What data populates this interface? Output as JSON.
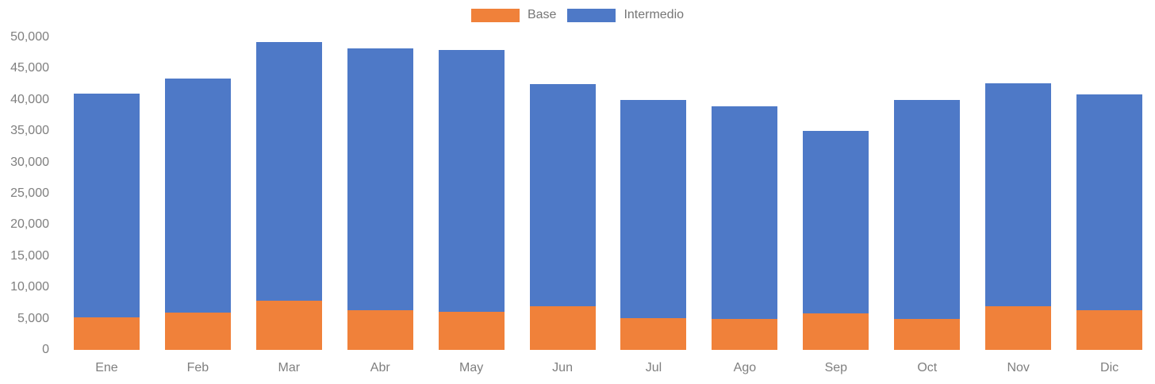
{
  "chart_data": {
    "type": "bar",
    "stacked": true,
    "title": "",
    "categories": [
      "Ene",
      "Feb",
      "Mar",
      "Abr",
      "May",
      "Jun",
      "Jul",
      "Ago",
      "Sep",
      "Oct",
      "Nov",
      "Dic"
    ],
    "series": [
      {
        "name": "Base",
        "color": "#F0813A",
        "values": [
          5200,
          6000,
          7900,
          6300,
          6100,
          7000,
          5100,
          4900,
          5800,
          5000,
          7000,
          6400
        ]
      },
      {
        "name": "Intermedio",
        "color": "#4E79C7",
        "values": [
          35800,
          37400,
          41300,
          41900,
          41900,
          35500,
          34900,
          34100,
          29200,
          35000,
          35600,
          34500
        ]
      }
    ],
    "stacked_totals": [
      41000,
      43400,
      49200,
      48200,
      48000,
      42500,
      40000,
      39000,
      35000,
      40000,
      42600,
      40900
    ],
    "ylim": [
      0,
      50000
    ],
    "ytick_step": 5000,
    "ytick_labels": [
      "0",
      "5,000",
      "10,000",
      "15,000",
      "20,000",
      "25,000",
      "30,000",
      "35,000",
      "40,000",
      "45,000",
      "50,000"
    ],
    "xlabel": "",
    "ylabel": "",
    "grid": false,
    "legend_position": "top-center",
    "label_color": "#7F7F7F"
  }
}
